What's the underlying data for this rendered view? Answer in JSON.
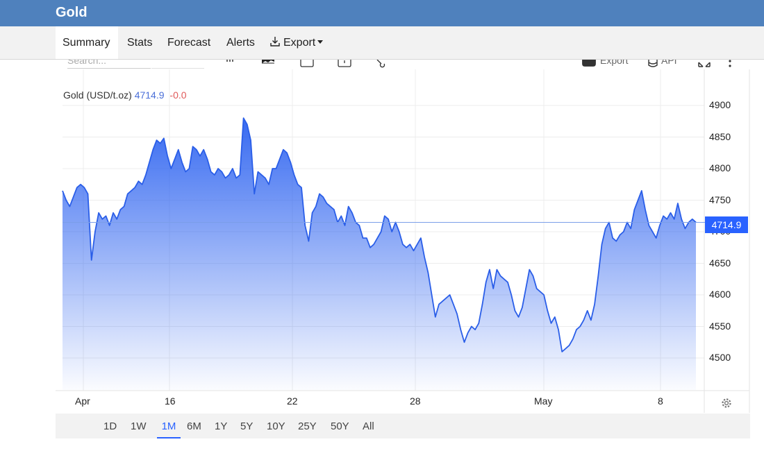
{
  "app": {
    "title": "Gold"
  },
  "tabs": [
    {
      "label": "Summary",
      "active": true
    },
    {
      "label": "Stats"
    },
    {
      "label": "Forecast"
    },
    {
      "label": "Alerts"
    },
    {
      "label": "Export",
      "has_dropdown": true
    }
  ],
  "toolbar_hidden": {
    "search_placeholder": "Search...",
    "export_label": "Export",
    "api_label": "API"
  },
  "legend": {
    "label": "Gold (USD/t.oz)",
    "value": "4714.9",
    "change": "-0.0"
  },
  "price_tag": "4714.9",
  "range_buttons": [
    "1D",
    "1W",
    "1M",
    "6M",
    "1Y",
    "5Y",
    "10Y",
    "25Y",
    "50Y",
    "All"
  ],
  "active_range": "1M",
  "colors": {
    "header": "#4f81bd",
    "accent": "#2962ff",
    "change": "#e05a5a"
  },
  "chart_data": {
    "type": "area",
    "y_ticks": [
      "4900",
      "4850",
      "4800",
      "4750",
      "4700",
      "4650",
      "4600",
      "4550",
      "4500"
    ],
    "x_ticks": [
      "Apr",
      "16",
      "22",
      "28",
      "May",
      "8"
    ],
    "ylim": [
      4450,
      4920
    ],
    "grid": true,
    "current_value": 4714.9,
    "values": [
      4765,
      4750,
      4740,
      4755,
      4770,
      4775,
      4770,
      4760,
      4655,
      4700,
      4730,
      4720,
      4725,
      4710,
      4730,
      4720,
      4735,
      4740,
      4760,
      4765,
      4770,
      4780,
      4775,
      4790,
      4810,
      4830,
      4845,
      4840,
      4848,
      4820,
      4800,
      4815,
      4830,
      4810,
      4795,
      4800,
      4835,
      4830,
      4820,
      4830,
      4815,
      4795,
      4790,
      4800,
      4795,
      4785,
      4790,
      4800,
      4785,
      4790,
      4880,
      4870,
      4845,
      4760,
      4795,
      4790,
      4785,
      4775,
      4800,
      4800,
      4815,
      4830,
      4825,
      4810,
      4790,
      4775,
      4770,
      4710,
      4685,
      4730,
      4740,
      4760,
      4755,
      4745,
      4740,
      4735,
      4715,
      4725,
      4710,
      4740,
      4730,
      4715,
      4710,
      4690,
      4690,
      4675,
      4680,
      4690,
      4700,
      4725,
      4720,
      4700,
      4715,
      4700,
      4680,
      4675,
      4680,
      4670,
      4680,
      4690,
      4660,
      4635,
      4600,
      4565,
      4585,
      4590,
      4595,
      4600,
      4585,
      4570,
      4545,
      4525,
      4540,
      4550,
      4545,
      4555,
      4585,
      4620,
      4640,
      4610,
      4640,
      4630,
      4625,
      4620,
      4600,
      4575,
      4565,
      4580,
      4610,
      4640,
      4630,
      4610,
      4605,
      4600,
      4575,
      4555,
      4565,
      4545,
      4510,
      4515,
      4520,
      4530,
      4545,
      4550,
      4560,
      4575,
      4560,
      4585,
      4630,
      4680,
      4705,
      4715,
      4690,
      4685,
      4695,
      4700,
      4715,
      4705,
      4735,
      4750,
      4765,
      4735,
      4710,
      4700,
      4690,
      4710,
      4725,
      4720,
      4730,
      4720,
      4745,
      4720,
      4705,
      4715,
      4720,
      4715
    ]
  }
}
